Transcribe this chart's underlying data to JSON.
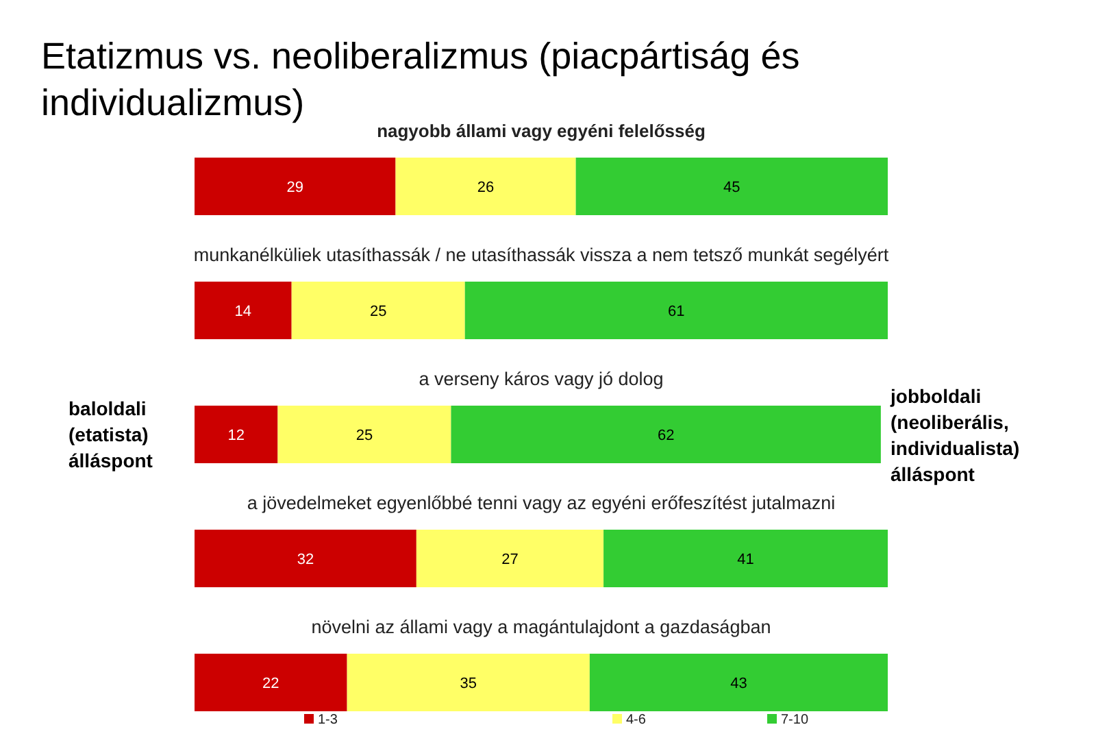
{
  "chart_data": {
    "type": "bar",
    "orientation": "horizontal",
    "stacked": true,
    "title": "Etatizmus vs. neoliberalizmus (piacpártiság és individualizmus)",
    "categories": [
      "nagyobb állami vagy egyéni felelősség",
      "munkanélküliek utasíthassák / ne utasíthassák vissza a nem tetsző munkát segélyért",
      "a verseny káros vagy jó dolog",
      "a jövedelmeket egyenlőbbé tenni vagy az egyéni erőfeszítést jutalmazni",
      "növelni az állami vagy a magántulajdont a gazdaságban"
    ],
    "series": [
      {
        "name": "1-3",
        "color": "#cc0000",
        "values": [
          29,
          14,
          12,
          32,
          22
        ]
      },
      {
        "name": "4-6",
        "color": "#ffff66",
        "values": [
          26,
          25,
          25,
          27,
          35
        ]
      },
      {
        "name": "7-10",
        "color": "#33cc33",
        "values": [
          45,
          61,
          62,
          41,
          43
        ]
      }
    ],
    "xlim": [
      0,
      100
    ],
    "data_labels": true,
    "legend": "bottom",
    "annotations": [
      "baloldali\n(etatista)\nálláspont",
      "jobboldali\n(neoliberális,\nindividualista)\nálláspont"
    ]
  }
}
